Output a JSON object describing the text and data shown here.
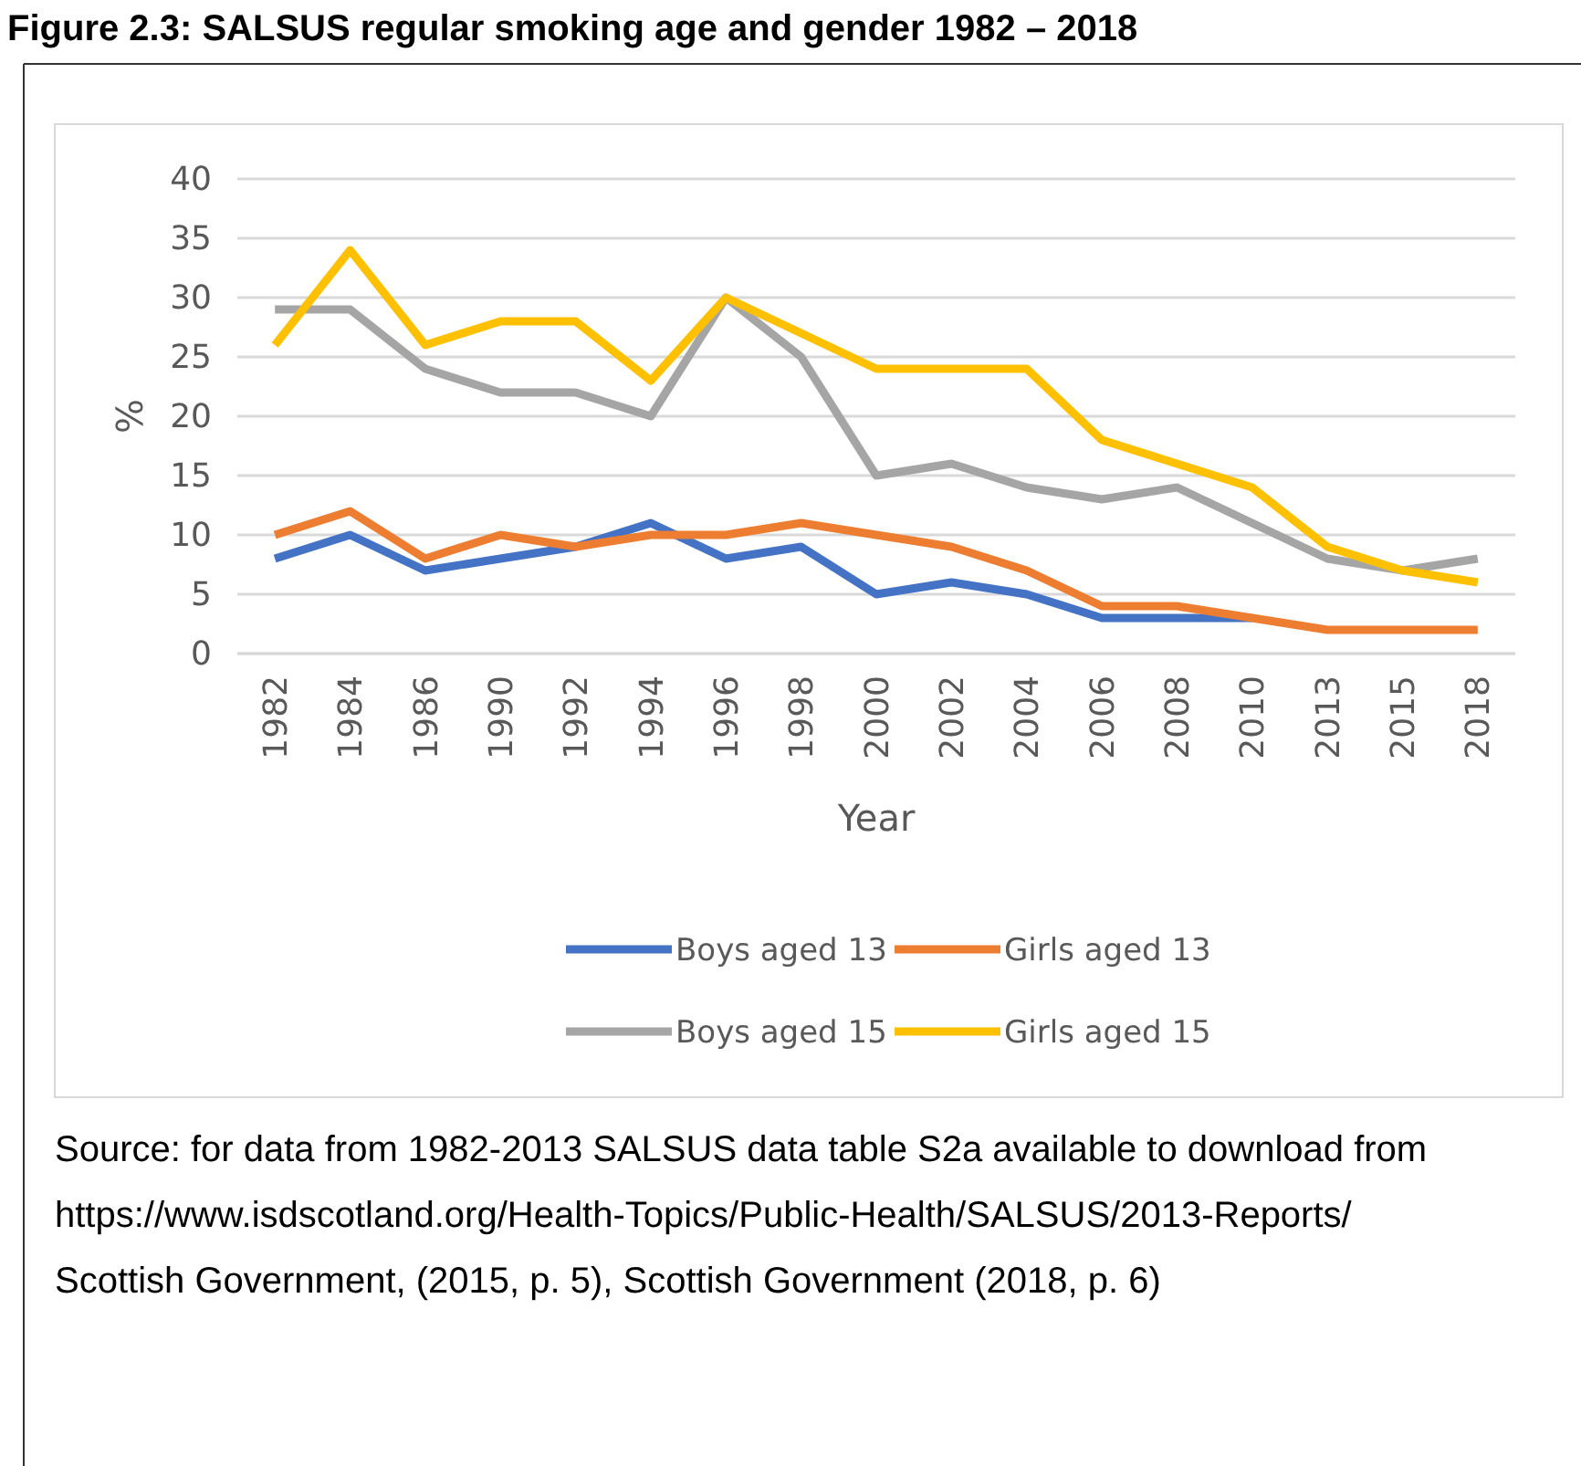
{
  "chart_data": {
    "type": "line",
    "title": "Figure 2.3: SALSUS regular smoking age and gender 1982 – 2018",
    "xlabel": "Year",
    "ylabel": "%",
    "categories": [
      "1982",
      "1984",
      "1986",
      "1990",
      "1992",
      "1994",
      "1996",
      "1998",
      "2000",
      "2002",
      "2004",
      "2006",
      "2008",
      "2010",
      "2013",
      "2015",
      "2018"
    ],
    "series": [
      {
        "name": "Boys aged 13",
        "color": "#4472c4",
        "values": [
          8,
          10,
          7,
          8,
          9,
          11,
          8,
          9,
          5,
          6,
          5,
          3,
          3,
          3,
          null,
          null,
          null
        ]
      },
      {
        "name": "Girls aged 13",
        "color": "#ed7d31",
        "values": [
          10,
          12,
          8,
          10,
          9,
          10,
          10,
          11,
          10,
          9,
          7,
          4,
          4,
          3,
          2,
          2,
          2
        ]
      },
      {
        "name": "Boys aged 15",
        "color": "#a5a5a5",
        "values": [
          29,
          29,
          24,
          22,
          22,
          20,
          30,
          25,
          15,
          16,
          14,
          13,
          14,
          11,
          8,
          7,
          8
        ]
      },
      {
        "name": "Girls aged 15",
        "color": "#ffc000",
        "values": [
          26,
          34,
          26,
          28,
          28,
          23,
          30,
          27,
          24,
          24,
          24,
          18,
          16,
          14,
          9,
          7,
          6
        ]
      }
    ],
    "ylim": [
      0,
      40
    ],
    "yticks": [
      0,
      5,
      10,
      15,
      20,
      25,
      30,
      35,
      40
    ],
    "grid": "y",
    "legend": "bottom",
    "marker": "none",
    "line_style": "solid",
    "annotations": [
      "Source: for data from 1982-2013 SALSUS data table S2a available to download from   https://www.isdscotland.org/Health-Topics/Public-Health/SALSUS/2013-Reports/",
      "Scottish Government, (2015, p. 5), Scottish Government (2018, p. 6)"
    ]
  }
}
